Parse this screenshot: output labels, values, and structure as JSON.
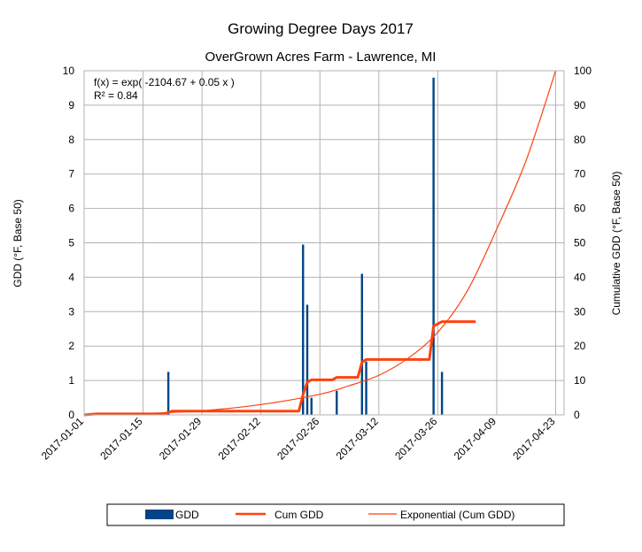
{
  "chart_data": {
    "type": "bar",
    "title": "Growing Degree Days 2017",
    "subtitle": "OverGrown Acres Farm - Lawrence, MI",
    "ylabel": "GDD (°F, Base 50)",
    "y2label": "Cumulative GDD (°F, Base 50)",
    "ylim": [
      0,
      10
    ],
    "y2lim": [
      0,
      100
    ],
    "yticks": [
      0,
      1,
      2,
      3,
      4,
      5,
      6,
      7,
      8,
      9,
      10
    ],
    "y2ticks": [
      0,
      10,
      20,
      30,
      40,
      50,
      60,
      70,
      80,
      90,
      100
    ],
    "xlim": [
      "2017-01-01",
      "2017-04-25"
    ],
    "xticks": [
      "2017-01-01",
      "2017-01-15",
      "2017-01-29",
      "2017-02-12",
      "2017-02-26",
      "2017-03-12",
      "2017-03-26",
      "2017-04-09",
      "2017-04-23"
    ],
    "grid": true,
    "legend_position": "bottom",
    "regression": {
      "equation": "f(x) = exp( -2104.67 + 0.05 x )",
      "r_squared": "R² = 0.84"
    },
    "colors": {
      "gdd": "#004586",
      "cum": "#ff420e",
      "exp": "#ff420e",
      "grid": "#b3b3b3"
    },
    "series": [
      {
        "name": "GDD",
        "kind": "bar",
        "axis": "left",
        "x": [
          "2017-01-21",
          "2017-02-22",
          "2017-02-23",
          "2017-02-24",
          "2017-03-02",
          "2017-03-08",
          "2017-03-09",
          "2017-03-25",
          "2017-03-27"
        ],
        "values": [
          1.25,
          4.95,
          3.2,
          0.5,
          0.7,
          4.1,
          1.55,
          9.8,
          1.25
        ]
      },
      {
        "name": "Cum GDD",
        "kind": "line",
        "axis": "right",
        "x": [
          "2017-01-01",
          "2017-01-04",
          "2017-01-20",
          "2017-01-22",
          "2017-02-21",
          "2017-02-22",
          "2017-02-23",
          "2017-02-24",
          "2017-03-01",
          "2017-03-02",
          "2017-03-07",
          "2017-03-08",
          "2017-03-09",
          "2017-03-24",
          "2017-03-25",
          "2017-03-27",
          "2017-04-04"
        ],
        "values": [
          0,
          0.3,
          0.3,
          1.1,
          1.1,
          5.9,
          9.5,
          10.2,
          10.2,
          10.9,
          10.9,
          15.3,
          16.1,
          16.1,
          25.8,
          27.1,
          27.1
        ]
      },
      {
        "name": "Exponential (Cum GDD)",
        "kind": "trendline",
        "axis": "right",
        "x": [
          "2017-01-01",
          "2017-01-15",
          "2017-01-29",
          "2017-02-12",
          "2017-02-26",
          "2017-03-05",
          "2017-03-12",
          "2017-03-19",
          "2017-03-26",
          "2017-04-02",
          "2017-04-09",
          "2017-04-16",
          "2017-04-23"
        ],
        "values": [
          0.1,
          0.4,
          1.2,
          3.0,
          6.0,
          8.5,
          11.5,
          16.5,
          24.0,
          36.0,
          54.0,
          74.0,
          100.0
        ]
      }
    ]
  }
}
